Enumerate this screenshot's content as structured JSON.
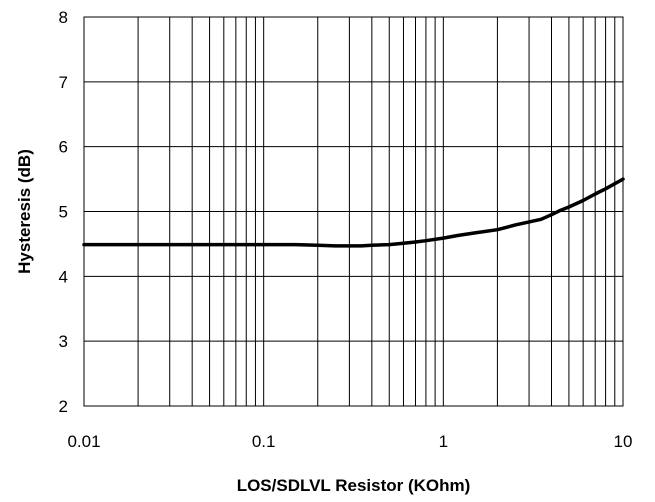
{
  "chart_data": {
    "type": "line",
    "title": "",
    "xlabel": "LOS/SDLVL Resistor (KOhm)",
    "ylabel": "Hysteresis (dB)",
    "x_scale": "log",
    "xlim": [
      0.01,
      10
    ],
    "ylim": [
      2,
      8
    ],
    "x_ticks": [
      0.01,
      0.1,
      1,
      10
    ],
    "x_tick_labels": [
      "0.01",
      "0.1",
      "1",
      "10"
    ],
    "y_ticks": [
      2,
      3,
      4,
      5,
      6,
      7,
      8
    ],
    "y_tick_labels": [
      "2",
      "3",
      "4",
      "5",
      "6",
      "7",
      "8"
    ],
    "grid": true,
    "legend": "none",
    "series": [
      {
        "color": "#000000",
        "x": [
          0.01,
          0.02,
          0.05,
          0.1,
          0.15,
          0.2,
          0.25,
          0.3,
          0.35,
          0.4,
          0.5,
          0.6,
          0.7,
          0.8,
          1,
          1.2,
          1.5,
          2,
          2.5,
          3,
          3.5,
          4,
          4.5,
          5,
          6,
          7,
          8,
          10
        ],
        "y": [
          4.49,
          4.49,
          4.49,
          4.49,
          4.49,
          4.48,
          4.47,
          4.47,
          4.47,
          4.48,
          4.49,
          4.51,
          4.53,
          4.55,
          4.59,
          4.63,
          4.67,
          4.72,
          4.79,
          4.84,
          4.88,
          4.95,
          5.02,
          5.07,
          5.17,
          5.27,
          5.35,
          5.5
        ]
      }
    ]
  }
}
